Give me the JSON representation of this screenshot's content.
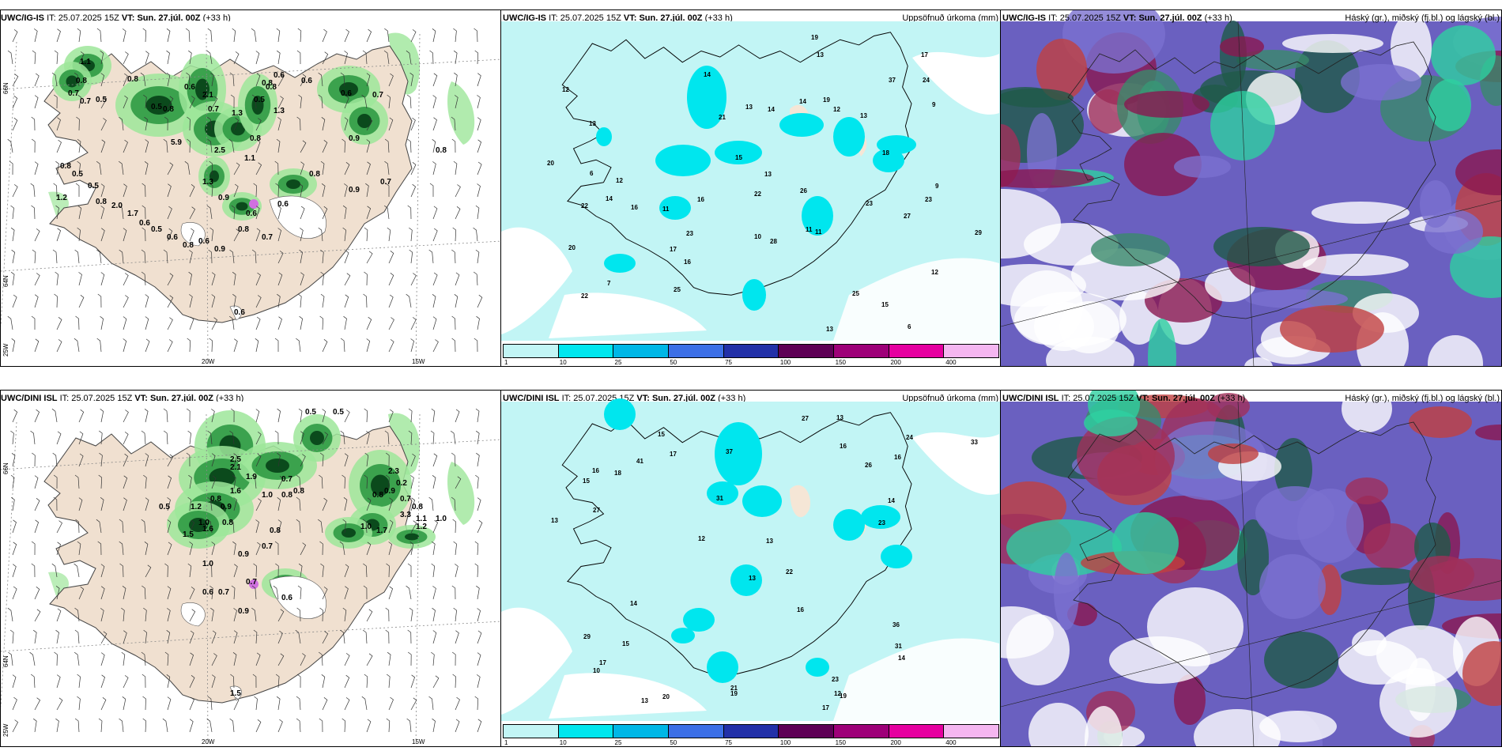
{
  "panels": {
    "ig_wind": {
      "model": "UWC/IG-IS",
      "it_label": "IT:",
      "it_value": "25.07.2025 15Z",
      "vt_label": "VT:",
      "vt_value": "Sun. 27.júl. 00Z",
      "lead": "(+33 h)",
      "lat_66": "66N",
      "lat_64": "64N",
      "lon_25": "25W",
      "lon_20": "20W",
      "lon_15": "15W",
      "values": [
        "1.1",
        "0.8",
        "0.7",
        "0.5",
        "0.7",
        "0.8",
        "0.5",
        "0.8",
        "0.6",
        "2.1",
        "0.7",
        "1.3",
        "0.5",
        "0.8",
        "0.6",
        "0.8",
        "1.3",
        "0.6",
        "0.6",
        "0.7",
        "0.9",
        "5.9",
        "2.5",
        "0.8",
        "1.1",
        "1.3",
        "0.9",
        "0.6",
        "0.6",
        "0.8",
        "0.9",
        "0.7",
        "0.8",
        "0.7",
        "0.9",
        "0.6",
        "0.8",
        "0.6",
        "0.5",
        "0.6",
        "1.7",
        "2.0",
        "0.8",
        "0.5",
        "0.5",
        "1.2",
        "0.8",
        "0.6",
        "0.8"
      ]
    },
    "ig_precip": {
      "model": "UWC/IG-IS",
      "it_label": "IT:",
      "it_value": "25.07.2025 15Z",
      "vt_label": "VT:",
      "vt_value": "Sun. 27.júl. 00Z",
      "lead": "(+33 h)",
      "right_title": "Uppsöfnuð úrkoma (mm)",
      "values": [
        "6",
        "14",
        "11",
        "12",
        "12",
        "13",
        "7",
        "11",
        "13",
        "13",
        "12",
        "15",
        "16",
        "14",
        "26",
        "20",
        "23",
        "13",
        "20",
        "22",
        "17",
        "14",
        "18",
        "29",
        "9",
        "6",
        "16",
        "22",
        "15",
        "24",
        "11",
        "22",
        "17",
        "19",
        "21",
        "27",
        "23",
        "25",
        "37",
        "13",
        "23",
        "28",
        "25",
        "19",
        "16",
        "12",
        "9",
        "13",
        "14",
        "10"
      ]
    },
    "ig_cloud": {
      "model": "UWC/IG-IS",
      "it_label": "IT:",
      "it_value": "25.07.2025 15Z",
      "vt_label": "VT:",
      "vt_value": "Sun. 27.júl. 00Z",
      "lead": "(+33 h)",
      "right_title": "Háský (gr.), miðský (fj.bl.) og lágský (bl.)"
    },
    "dini_wind": {
      "model": "UWC/DINI ISL",
      "it_label": "IT:",
      "it_value": "25.07.2025 15Z",
      "vt_label": "VT:",
      "vt_value": "Sun. 27.júl. 00Z",
      "lead": "(+33 h)",
      "lat_66": "66N",
      "lat_64": "64N",
      "lon_25": "25W",
      "lon_20": "20W",
      "lon_15": "15W",
      "values": [
        "0.5",
        "0.5",
        "2.5",
        "2.1",
        "1.9",
        "1.6",
        "0.9",
        "0.8",
        "1.0",
        "1.2",
        "0.8",
        "1.0",
        "0.8",
        "0.8",
        "0.7",
        "0.5",
        "1.5",
        "1.6",
        "0.8",
        "0.7",
        "0.9",
        "1.0",
        "0.7",
        "0.7",
        "0.9",
        "0.6",
        "1.0",
        "1.7",
        "3.3",
        "1.1",
        "1.0",
        "1.2",
        "2.3",
        "0.2",
        "0.9",
        "0.7",
        "0.8",
        "0.8",
        "0.6",
        "1.5"
      ]
    },
    "dini_precip": {
      "model": "UWC/DINI ISL",
      "it_label": "IT:",
      "it_value": "25.07.2025 15Z",
      "vt_label": "VT:",
      "vt_value": "Sun. 27.júl. 00Z",
      "lead": "(+33 h)",
      "right_title": "Uppsöfnuð úrkoma (mm)",
      "values": [
        "15",
        "14",
        "12",
        "15",
        "16",
        "10",
        "14",
        "13",
        "16",
        "26",
        "17",
        "13",
        "14",
        "27",
        "21",
        "22",
        "23",
        "17",
        "16",
        "31",
        "27",
        "13",
        "12",
        "23",
        "41",
        "33",
        "24",
        "37",
        "16",
        "19",
        "18",
        "13",
        "31",
        "36",
        "29",
        "20",
        "17",
        "19",
        "15",
        "13"
      ]
    },
    "dini_cloud": {
      "model": "UWC/DINI ISL",
      "it_label": "IT:",
      "it_value": "25.07.2025 15Z",
      "vt_label": "VT:",
      "vt_value": "Sun. 27.júl. 00Z",
      "lead": "(+33 h)",
      "right_title": "Háský (gr.), miðský (fj.bl.) og lágský (bl.)"
    }
  },
  "colorbar": {
    "labels": [
      "1",
      "10",
      "25",
      "50",
      "75",
      "100",
      "150",
      "200",
      "400"
    ],
    "colors": [
      "#c2f5f5",
      "#00e6ee",
      "#00b7e6",
      "#3c6fe6",
      "#2230a8",
      "#5e0055",
      "#9e0078",
      "#e600a0",
      "#f5b6f0"
    ]
  },
  "palette": {
    "land": "#f0e0d0",
    "light_green": "#9ee69a",
    "mid_green": "#2f9a44",
    "dark_green": "#0b4a1c",
    "precip_light": "#c2f5f5",
    "precip_cyan": "#00e6ee",
    "cloud_high": "#8a1850",
    "cloud_mid": "#3a8a6a",
    "cloud_low": "#6a60c0"
  }
}
